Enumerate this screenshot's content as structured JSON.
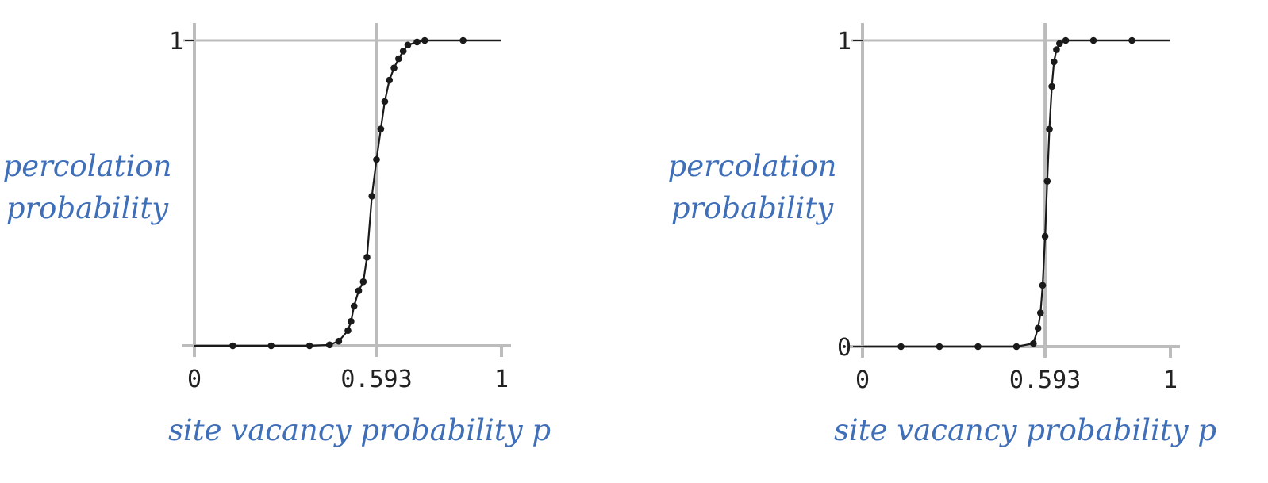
{
  "chart_data": [
    {
      "type": "line",
      "title": "",
      "ylabel_lines": [
        "percolation",
        "probability"
      ],
      "xlabel": "site vacancy probability p",
      "xlim": [
        0,
        1
      ],
      "ylim": [
        0,
        1
      ],
      "x_ticks": [
        "0",
        "0.593",
        "1"
      ],
      "x_tick_values": [
        0,
        0.593,
        1
      ],
      "y_ticks": [
        "1"
      ],
      "y_tick_values": [
        1
      ],
      "reference_line_x": 0.593,
      "grid": false,
      "series": [
        {
          "x": [
            0.0,
            0.125,
            0.25,
            0.375,
            0.44,
            0.47,
            0.5,
            0.51,
            0.52,
            0.535,
            0.55,
            0.562,
            0.578,
            0.593,
            0.607,
            0.62,
            0.635,
            0.65,
            0.665,
            0.68,
            0.695,
            0.725,
            0.75,
            0.875,
            1.0
          ],
          "y": [
            0.0,
            0.0,
            0.0,
            0.0,
            0.003,
            0.015,
            0.05,
            0.08,
            0.13,
            0.18,
            0.21,
            0.29,
            0.49,
            0.61,
            0.71,
            0.8,
            0.87,
            0.91,
            0.94,
            0.965,
            0.985,
            0.995,
            1.0,
            1.0,
            1.0
          ]
        }
      ]
    },
    {
      "type": "line",
      "title": "",
      "ylabel_lines": [
        "percolation",
        "probability"
      ],
      "xlabel": "site vacancy probability p",
      "xlim": [
        0,
        1
      ],
      "ylim": [
        0,
        1
      ],
      "x_ticks": [
        "0",
        "0.593",
        "1"
      ],
      "x_tick_values": [
        0,
        0.593,
        1
      ],
      "y_ticks": [
        "0",
        "1"
      ],
      "y_tick_values": [
        0,
        1
      ],
      "reference_line_x": 0.593,
      "grid": false,
      "series": [
        {
          "x": [
            0.0,
            0.125,
            0.25,
            0.375,
            0.5,
            0.555,
            0.57,
            0.578,
            0.585,
            0.593,
            0.6,
            0.607,
            0.615,
            0.622,
            0.63,
            0.64,
            0.66,
            0.75,
            0.875,
            1.0
          ],
          "y": [
            0.0,
            0.0,
            0.0,
            0.0,
            0.0,
            0.01,
            0.06,
            0.11,
            0.2,
            0.36,
            0.54,
            0.71,
            0.85,
            0.93,
            0.97,
            0.99,
            1.0,
            1.0,
            1.0,
            1.0
          ]
        }
      ]
    }
  ]
}
